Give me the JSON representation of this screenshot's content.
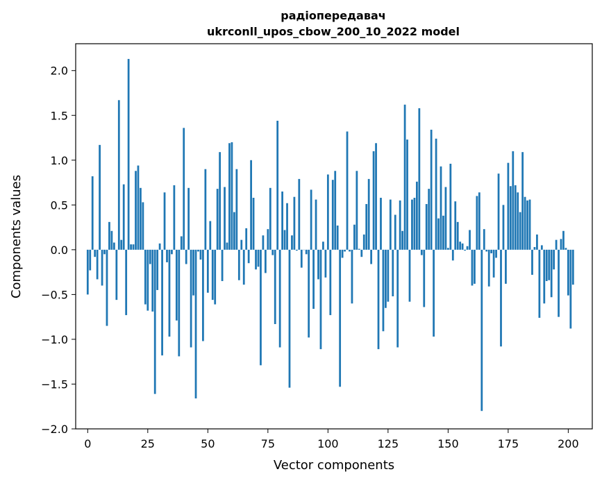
{
  "chart_data": {
    "type": "bar",
    "title": "радіопередавач",
    "subtitle": "ukrconll_upos_cbow_200_10_2022 model",
    "xlabel": "Vector components",
    "ylabel": "Components values",
    "xlim": [
      -5,
      210
    ],
    "ylim": [
      -2.0,
      2.3
    ],
    "xticks": [
      0,
      25,
      50,
      75,
      100,
      125,
      150,
      175,
      200
    ],
    "yticks": [
      -2.0,
      -1.5,
      -1.0,
      -0.5,
      0.0,
      0.5,
      1.0,
      1.5,
      2.0
    ],
    "ytick_labels": [
      "−2.0",
      "−1.5",
      "−1.0",
      "−0.5",
      "0.0",
      "0.5",
      "1.0",
      "1.5",
      "2.0"
    ],
    "bar_color": "#1f77b4",
    "grid": false,
    "values": [
      -0.5,
      -0.23,
      0.82,
      -0.08,
      -0.33,
      1.17,
      -0.4,
      -0.05,
      -0.85,
      0.31,
      0.21,
      0.08,
      -0.56,
      1.67,
      0.11,
      0.73,
      -0.73,
      2.13,
      0.06,
      0.06,
      0.88,
      0.94,
      0.69,
      0.53,
      -0.61,
      -0.68,
      -0.16,
      -0.69,
      -1.61,
      -0.45,
      0.07,
      -1.18,
      0.64,
      -0.14,
      -0.97,
      -0.05,
      0.72,
      -0.79,
      -1.19,
      0.15,
      1.36,
      -0.16,
      0.69,
      -1.09,
      -0.51,
      -1.66,
      -0.02,
      -0.11,
      -1.02,
      0.9,
      -0.48,
      0.32,
      -0.56,
      -0.61,
      0.68,
      1.09,
      -0.35,
      0.7,
      0.08,
      1.19,
      1.2,
      0.42,
      0.9,
      -0.34,
      0.11,
      -0.39,
      0.24,
      -0.15,
      1.0,
      0.58,
      -0.22,
      -0.19,
      -1.29,
      0.16,
      -0.26,
      0.23,
      0.69,
      -0.06,
      -0.83,
      1.44,
      -1.09,
      0.65,
      0.22,
      0.52,
      -1.54,
      0.16,
      0.59,
      -0.01,
      0.79,
      -0.2,
      0.0,
      -0.05,
      -0.98,
      0.67,
      -0.66,
      0.56,
      -0.33,
      -1.11,
      0.09,
      -0.31,
      0.84,
      -0.73,
      0.78,
      0.88,
      0.27,
      -1.53,
      -0.09,
      -0.02,
      1.32,
      -0.02,
      -0.6,
      0.28,
      0.88,
      0.01,
      -0.08,
      0.17,
      0.51,
      0.79,
      -0.16,
      1.1,
      1.19,
      -1.11,
      0.58,
      -0.91,
      -0.65,
      -0.58,
      0.56,
      -0.52,
      0.39,
      -1.09,
      0.55,
      0.21,
      1.62,
      1.23,
      -0.58,
      0.56,
      0.58,
      0.76,
      1.58,
      -0.06,
      -0.64,
      0.51,
      0.68,
      1.34,
      -0.97,
      1.24,
      0.35,
      0.93,
      0.38,
      0.7,
      0.02,
      0.96,
      -0.12,
      0.54,
      0.31,
      0.09,
      0.07,
      -0.01,
      0.04,
      0.22,
      -0.4,
      -0.38,
      0.6,
      0.64,
      -1.8,
      0.23,
      -0.02,
      -0.41,
      -0.04,
      -0.31,
      -0.09,
      0.85,
      -1.08,
      0.5,
      -0.38,
      0.97,
      0.71,
      1.1,
      0.72,
      0.64,
      0.42,
      1.09,
      0.59,
      0.55,
      0.56,
      -0.28,
      0.03,
      0.17,
      -0.76,
      0.05,
      -0.6,
      -0.35,
      -0.34,
      -0.53,
      -0.22,
      0.11,
      -0.75,
      0.12,
      0.21,
      0.02,
      -0.51,
      -0.88,
      -0.39
    ]
  }
}
